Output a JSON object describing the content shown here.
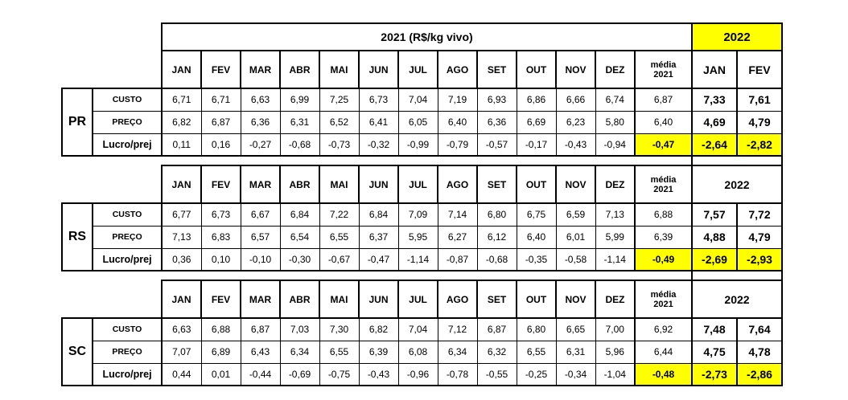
{
  "page": {
    "background": "#FFFFFF"
  },
  "table": {
    "banner_2021": "2021  (R$/kg vivo)",
    "banner_2022": "2022",
    "year_2022": "2022",
    "media_header_line1": "média",
    "media_header_line2": "2021",
    "months": [
      "JAN",
      "FEV",
      "MAR",
      "ABR",
      "MAI",
      "JUN",
      "JUL",
      "AGO",
      "SET",
      "OUT",
      "NOV",
      "DEZ"
    ],
    "months_2022": [
      "JAN",
      "FEV"
    ],
    "colors": {
      "highlight": "#FFFF00",
      "grid": "#000000",
      "text": "#000000",
      "marker_green": "#1E9B3C",
      "background": "#FFFFFF"
    },
    "blocks": [
      {
        "state": "PR",
        "rows": [
          {
            "label": "CUSTO",
            "highlight": false,
            "values": [
              "6,71",
              "6,71",
              "6,63",
              "6,99",
              "7,25",
              "6,73",
              "7,04",
              "7,19",
              "6,93",
              "6,86",
              "6,66",
              "6,74"
            ],
            "media": "6,87",
            "y2022": [
              "7,33",
              "7,61"
            ]
          },
          {
            "label": "PREÇO",
            "highlight": false,
            "values": [
              "6,82",
              "6,87",
              "6,36",
              "6,31",
              "6,52",
              "6,41",
              "6,05",
              "6,40",
              "6,36",
              "6,69",
              "6,23",
              "5,80"
            ],
            "media": "6,40",
            "y2022": [
              "4,69",
              "4,79"
            ]
          },
          {
            "label": "Lucro/prej",
            "highlight": true,
            "values": [
              "0,11",
              "0,16",
              "-0,27",
              "-0,68",
              "-0,73",
              "-0,32",
              "-0,99",
              "-0,79",
              "-0,57",
              "-0,17",
              "-0,43",
              "-0,94"
            ],
            "media": "-0,47",
            "y2022": [
              "-2,64",
              "-2,82"
            ]
          }
        ]
      },
      {
        "state": "RS",
        "rows": [
          {
            "label": "CUSTO",
            "highlight": false,
            "values": [
              "6,77",
              "6,73",
              "6,67",
              "6,84",
              "7,22",
              "6,84",
              "7,09",
              "7,14",
              "6,80",
              "6,75",
              "6,59",
              "7,13"
            ],
            "media": "6,88",
            "y2022": [
              "7,57",
              "7,72"
            ]
          },
          {
            "label": "PREÇO",
            "highlight": false,
            "values": [
              "7,13",
              "6,83",
              "6,57",
              "6,54",
              "6,55",
              "6,37",
              "5,95",
              "6,27",
              "6,12",
              "6,40",
              "6,01",
              "5,99"
            ],
            "media": "6,39",
            "y2022": [
              "4,88",
              "4,79"
            ]
          },
          {
            "label": "Lucro/prej",
            "highlight": true,
            "values": [
              "0,36",
              "0,10",
              "-0,10",
              "-0,30",
              "-0,67",
              "-0,47",
              "-1,14",
              "-0,87",
              "-0,68",
              "-0,35",
              "-0,58",
              "-1,14"
            ],
            "media": "-0,49",
            "y2022": [
              "-2,69",
              "-2,93"
            ]
          }
        ]
      },
      {
        "state": "SC",
        "rows": [
          {
            "label": "CUSTO",
            "highlight": false,
            "values": [
              "6,63",
              "6,88",
              "6,87",
              "7,03",
              "7,30",
              "6,82",
              "7,04",
              "7,12",
              "6,87",
              "6,80",
              "6,65",
              "7,00"
            ],
            "media": "6,92",
            "y2022": [
              "7,48",
              "7,64"
            ]
          },
          {
            "label": "PREÇO",
            "highlight": false,
            "values": [
              "7,07",
              "6,89",
              "6,43",
              "6,34",
              "6,55",
              "6,39",
              "6,08",
              "6,34",
              "6,32",
              "6,55",
              "6,31",
              "5,96"
            ],
            "media": "6,44",
            "y2022": [
              "4,75",
              "4,78"
            ]
          },
          {
            "label": "Lucro/prej",
            "highlight": true,
            "values": [
              "0,44",
              "0,01",
              "-0,44",
              "-0,69",
              "-0,75",
              "-0,43",
              "-0,96",
              "-0,78",
              "-0,55",
              "-0,25",
              "-0,34",
              "-1,04"
            ],
            "media": "-0,48",
            "y2022": [
              "-2,73",
              "-2,86"
            ]
          }
        ]
      }
    ]
  },
  "chart_data": {
    "type": "table",
    "title": "2021 (R$/kg vivo)",
    "columns": [
      "JAN",
      "FEV",
      "MAR",
      "ABR",
      "MAI",
      "JUN",
      "JUL",
      "AGO",
      "SET",
      "OUT",
      "NOV",
      "DEZ",
      "média 2021",
      "JAN 2022",
      "FEV 2022"
    ],
    "unit": "R$/kg vivo",
    "groups": [
      {
        "state": "PR",
        "series": [
          {
            "name": "CUSTO",
            "values_2021": [
              6.71,
              6.71,
              6.63,
              6.99,
              7.25,
              6.73,
              7.04,
              7.19,
              6.93,
              6.86,
              6.66,
              6.74
            ],
            "media_2021": 6.87,
            "values_2022": [
              7.33,
              7.61
            ]
          },
          {
            "name": "PREÇO",
            "values_2021": [
              6.82,
              6.87,
              6.36,
              6.31,
              6.52,
              6.41,
              6.05,
              6.4,
              6.36,
              6.69,
              6.23,
              5.8
            ],
            "media_2021": 6.4,
            "values_2022": [
              4.69,
              4.79
            ]
          },
          {
            "name": "Lucro/prej",
            "values_2021": [
              0.11,
              0.16,
              -0.27,
              -0.68,
              -0.73,
              -0.32,
              -0.99,
              -0.79,
              -0.57,
              -0.17,
              -0.43,
              -0.94
            ],
            "media_2021": -0.47,
            "values_2022": [
              -2.64,
              -2.82
            ]
          }
        ]
      },
      {
        "state": "RS",
        "series": [
          {
            "name": "CUSTO",
            "values_2021": [
              6.77,
              6.73,
              6.67,
              6.84,
              7.22,
              6.84,
              7.09,
              7.14,
              6.8,
              6.75,
              6.59,
              7.13
            ],
            "media_2021": 6.88,
            "values_2022": [
              7.57,
              7.72
            ]
          },
          {
            "name": "PREÇO",
            "values_2021": [
              7.13,
              6.83,
              6.57,
              6.54,
              6.55,
              6.37,
              5.95,
              6.27,
              6.12,
              6.4,
              6.01,
              5.99
            ],
            "media_2021": 6.39,
            "values_2022": [
              4.88,
              4.79
            ]
          },
          {
            "name": "Lucro/prej",
            "values_2021": [
              0.36,
              0.1,
              -0.1,
              -0.3,
              -0.67,
              -0.47,
              -1.14,
              -0.87,
              -0.68,
              -0.35,
              -0.58,
              -1.14
            ],
            "media_2021": -0.49,
            "values_2022": [
              -2.69,
              -2.93
            ]
          }
        ]
      },
      {
        "state": "SC",
        "series": [
          {
            "name": "CUSTO",
            "values_2021": [
              6.63,
              6.88,
              6.87,
              7.03,
              7.3,
              6.82,
              7.04,
              7.12,
              6.87,
              6.8,
              6.65,
              7.0
            ],
            "media_2021": 6.92,
            "values_2022": [
              7.48,
              7.64
            ]
          },
          {
            "name": "PREÇO",
            "values_2021": [
              7.07,
              6.89,
              6.43,
              6.34,
              6.55,
              6.39,
              6.08,
              6.34,
              6.32,
              6.55,
              6.31,
              5.96
            ],
            "media_2021": 6.44,
            "values_2022": [
              4.75,
              4.78
            ]
          },
          {
            "name": "Lucro/prej",
            "values_2021": [
              0.44,
              0.01,
              -0.44,
              -0.69,
              -0.75,
              -0.43,
              -0.96,
              -0.78,
              -0.55,
              -0.25,
              -0.34,
              -1.04
            ],
            "media_2021": -0.48,
            "values_2022": [
              -2.73,
              -2.86
            ]
          }
        ]
      }
    ]
  }
}
